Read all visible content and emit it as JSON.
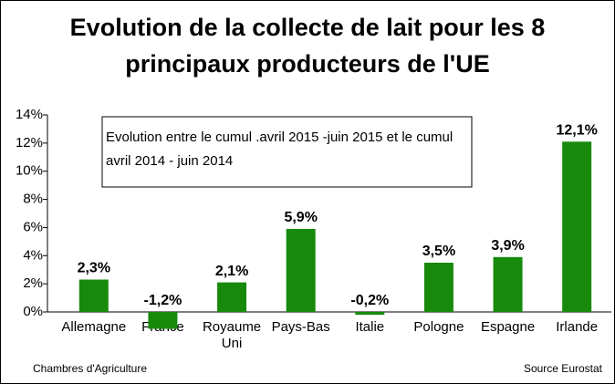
{
  "chart_data": {
    "type": "bar",
    "title": "Evolution de la collecte de lait pour les 8 principaux producteurs de l'UE",
    "annotation": "Evolution entre le cumul .avril 2015 -juin 2015  et le cumul  avril 2014 - juin 2014",
    "source_left": "Chambres d'Agriculture",
    "source_right": "Source Eurostat",
    "categories": [
      "Allemagne",
      "France",
      "Royaume Uni",
      "Pays-Bas",
      "Italie",
      "Pologne",
      "Espagne",
      "Irlande"
    ],
    "values": [
      2.3,
      -1.2,
      2.1,
      5.9,
      -0.2,
      3.5,
      3.9,
      12.1
    ],
    "value_labels": [
      "2,3%",
      "-1,2%",
      "2,1%",
      "5,9%",
      "-0,2%",
      "3,5%",
      "3,9%",
      "12,1%"
    ],
    "color": "#178a0c",
    "ylim": [
      0,
      14
    ],
    "yticks": [
      {
        "value": 0,
        "label": "0%"
      },
      {
        "value": 2,
        "label": "2%"
      },
      {
        "value": 4,
        "label": "4%"
      },
      {
        "value": 6,
        "label": "6%"
      },
      {
        "value": 8,
        "label": "8%"
      },
      {
        "value": 10,
        "label": "10%"
      },
      {
        "value": 12,
        "label": "12%"
      },
      {
        "value": 14,
        "label": "14%"
      }
    ],
    "grid": false
  }
}
